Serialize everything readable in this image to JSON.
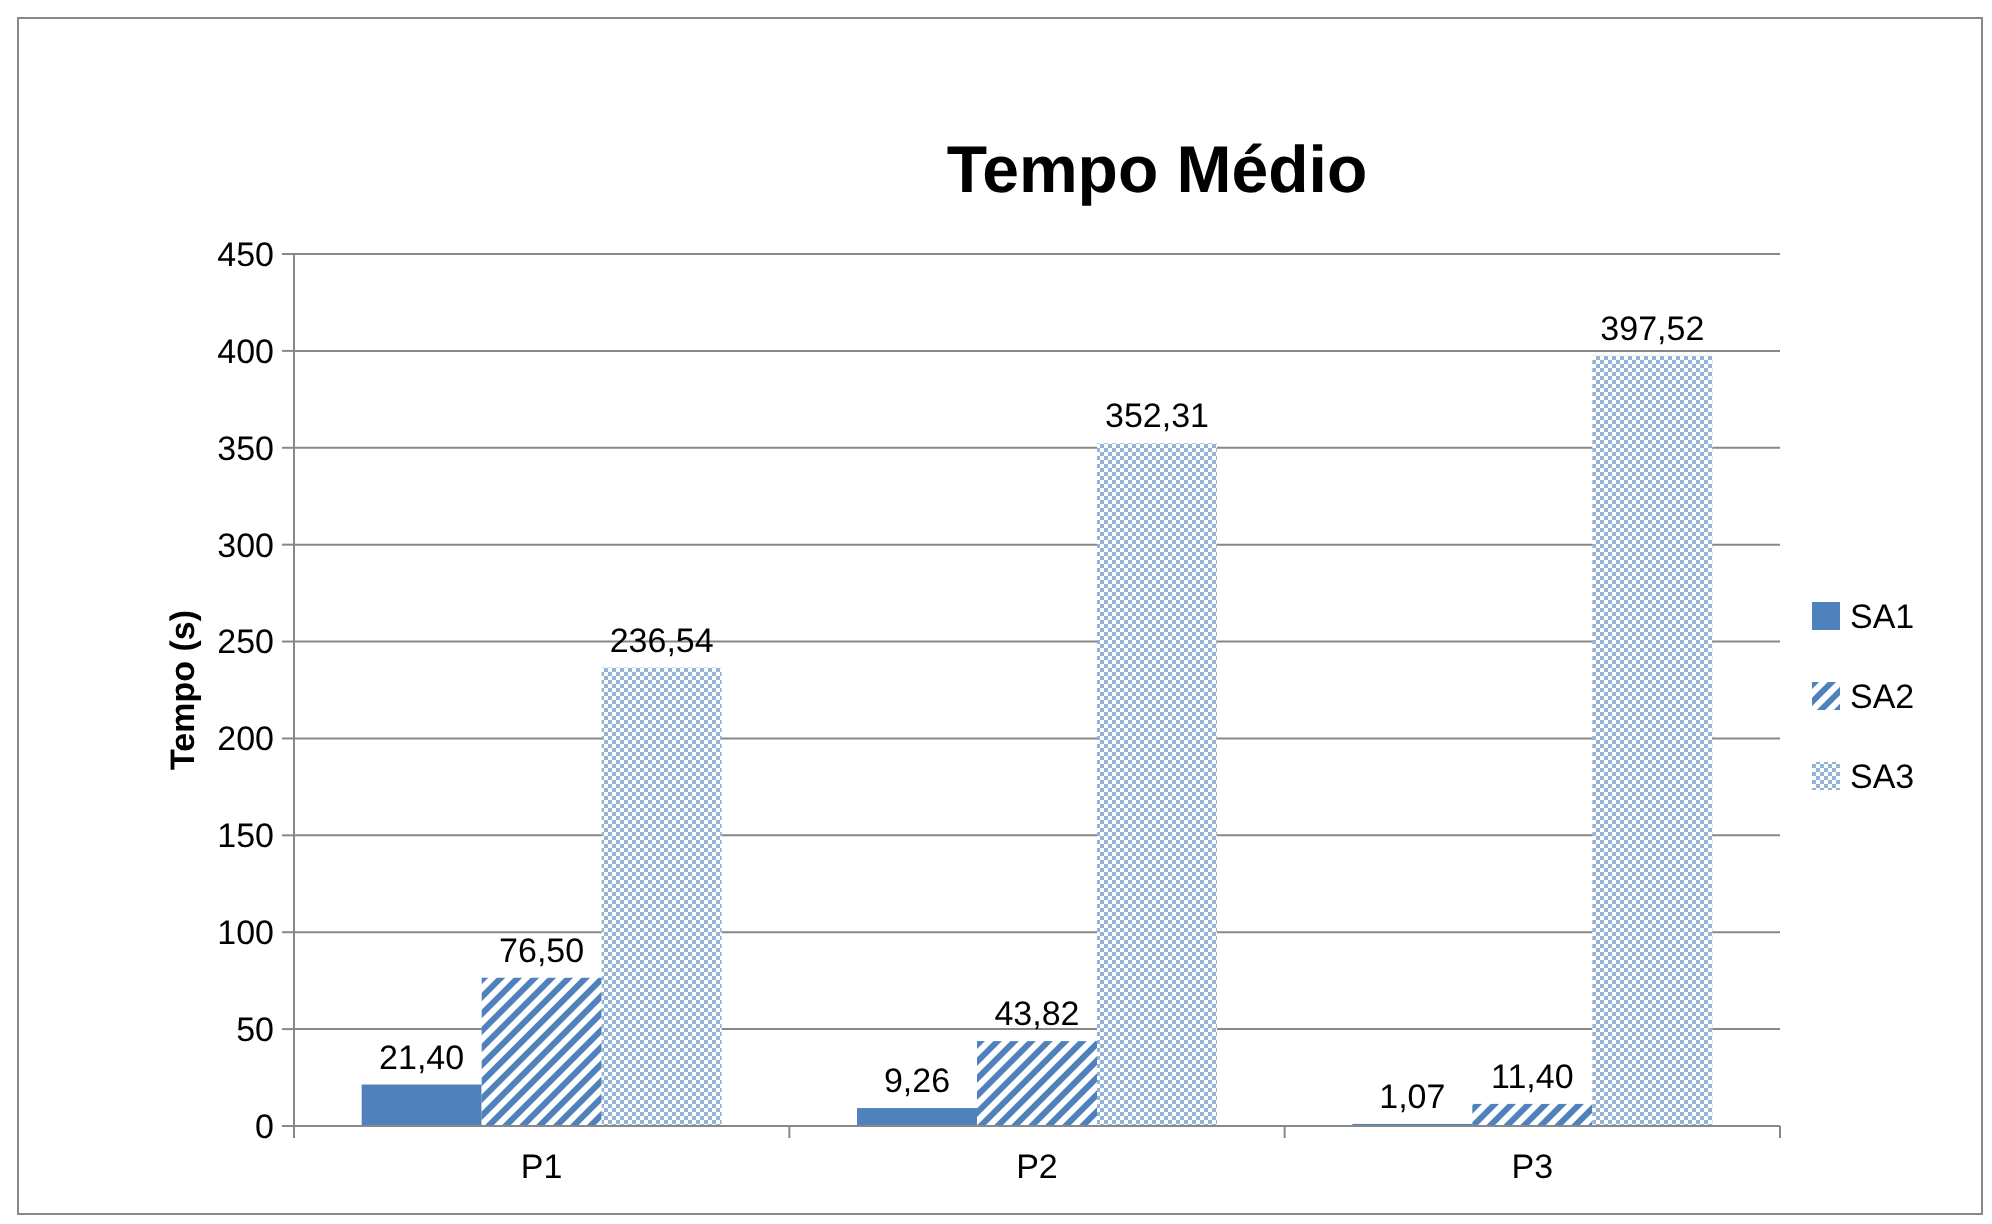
{
  "chart_data": {
    "type": "bar",
    "title": "Tempo Médio",
    "ylabel": "Tempo (s)",
    "categories": [
      "P1",
      "P2",
      "P3"
    ],
    "series": [
      {
        "name": "SA1",
        "color": "#4f81bd",
        "values": [
          21.4,
          9.26,
          1.07
        ],
        "value_labels": [
          "21,40",
          "9,26",
          "1,07"
        ]
      },
      {
        "name": "SA2",
        "color": "#4f81bd",
        "values": [
          76.5,
          43.82,
          11.4
        ],
        "value_labels": [
          "76,50",
          "43,82",
          "11,40"
        ]
      },
      {
        "name": "SA3",
        "color": "#95b3d7",
        "values": [
          236.54,
          352.31,
          397.52
        ],
        "value_labels": [
          "236,54",
          "352,31",
          "397,52"
        ]
      }
    ],
    "ylim": [
      0,
      450
    ],
    "yticks": [
      0,
      50,
      100,
      150,
      200,
      250,
      300,
      350,
      400,
      450
    ],
    "grid": "y",
    "legend": "right"
  }
}
